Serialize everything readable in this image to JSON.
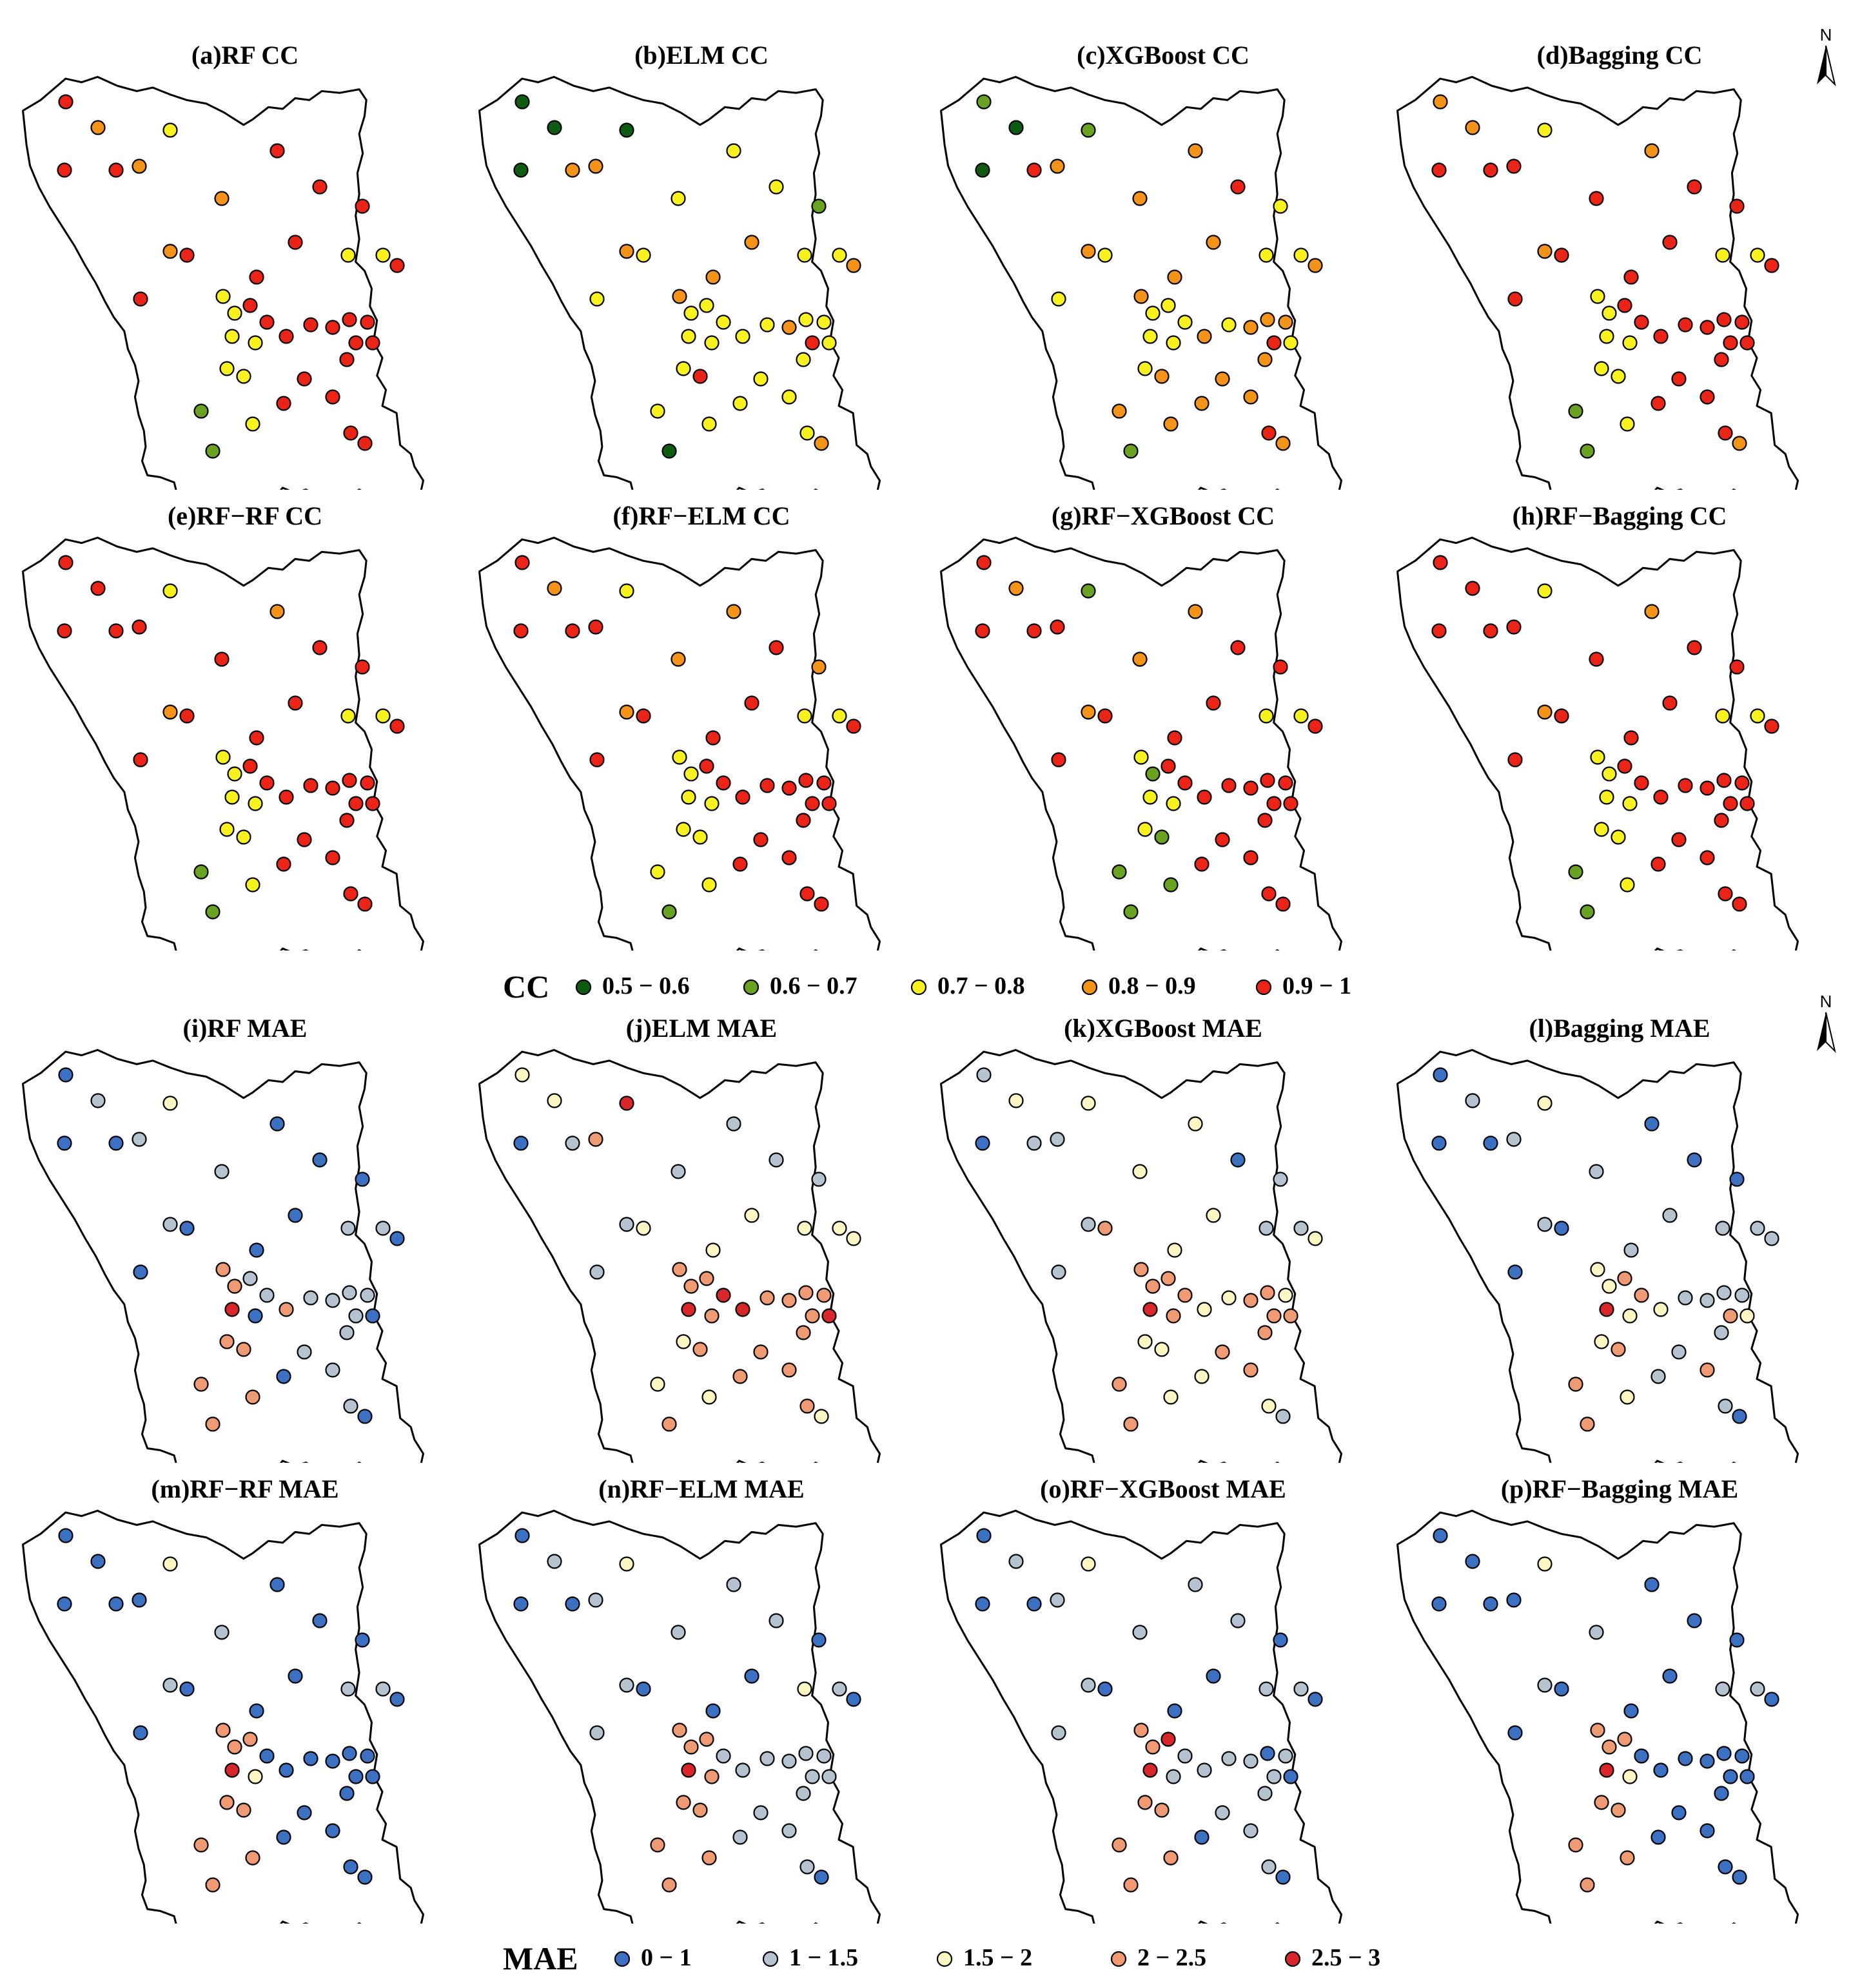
{
  "cc_legend": {
    "title": "CC",
    "classes": [
      {
        "label": "0.5 − 0.6",
        "color": "#0e5b12"
      },
      {
        "label": "0.6 − 0.7",
        "color": "#6aa321"
      },
      {
        "label": "0.7 − 0.8",
        "color": "#f7f11e"
      },
      {
        "label": "0.8 − 0.9",
        "color": "#f39419"
      },
      {
        "label": "0.9 − 1",
        "color": "#eb2417"
      }
    ]
  },
  "mae_legend": {
    "title": "MAE",
    "classes": [
      {
        "label": "0 − 1",
        "color": "#3c70c2"
      },
      {
        "label": "1 − 1.5",
        "color": "#b4c3cf"
      },
      {
        "label": "1.5 − 2",
        "color": "#fbf6c2"
      },
      {
        "label": "2 − 2.5",
        "color": "#f09a73"
      },
      {
        "label": "2.5 − 3",
        "color": "#d8262a"
      }
    ]
  },
  "north_arrow_label": "N",
  "panels": [
    {
      "title": "(a)RF CC",
      "metric": "cc",
      "classes": [
        4,
        3,
        2,
        4,
        4,
        3,
        4,
        3,
        4,
        3,
        4,
        2,
        2,
        4,
        4,
        4,
        4,
        4,
        2,
        2,
        2,
        4,
        4,
        2,
        4,
        4,
        4,
        4,
        4,
        4,
        4,
        4,
        2,
        2,
        1,
        4,
        4,
        2,
        4,
        1,
        4,
        4
      ]
    },
    {
      "title": "(b)ELM CC",
      "metric": "cc",
      "classes": [
        0,
        0,
        0,
        0,
        3,
        3,
        2,
        2,
        2,
        3,
        1,
        2,
        2,
        2,
        2,
        3,
        3,
        3,
        3,
        2,
        2,
        2,
        2,
        2,
        2,
        2,
        3,
        2,
        2,
        2,
        4,
        2,
        2,
        4,
        2,
        2,
        2,
        2,
        2,
        0,
        2,
        3
      ]
    },
    {
      "title": "(c)XGBoost CC",
      "metric": "cc",
      "classes": [
        1,
        0,
        1,
        0,
        4,
        3,
        3,
        3,
        4,
        3,
        2,
        2,
        2,
        2,
        2,
        3,
        3,
        3,
        3,
        2,
        2,
        2,
        2,
        2,
        3,
        2,
        3,
        3,
        3,
        2,
        4,
        3,
        2,
        3,
        3,
        3,
        3,
        3,
        3,
        1,
        4,
        3
      ]
    },
    {
      "title": "(d)Bagging CC",
      "metric": "cc",
      "classes": [
        3,
        3,
        2,
        4,
        4,
        4,
        3,
        4,
        4,
        3,
        4,
        2,
        2,
        4,
        4,
        4,
        4,
        4,
        2,
        2,
        2,
        4,
        4,
        2,
        4,
        4,
        4,
        4,
        4,
        4,
        4,
        4,
        2,
        2,
        1,
        4,
        4,
        2,
        4,
        1,
        4,
        3
      ]
    },
    {
      "title": "(e)RF−RF CC",
      "metric": "cc",
      "classes": [
        4,
        4,
        2,
        4,
        4,
        4,
        3,
        4,
        4,
        3,
        4,
        2,
        2,
        4,
        4,
        4,
        4,
        4,
        2,
        2,
        2,
        4,
        4,
        2,
        4,
        4,
        4,
        4,
        4,
        4,
        4,
        4,
        2,
        2,
        1,
        4,
        4,
        2,
        4,
        1,
        4,
        4
      ]
    },
    {
      "title": "(f)RF−ELM CC",
      "metric": "cc",
      "classes": [
        4,
        3,
        2,
        4,
        4,
        4,
        3,
        3,
        4,
        3,
        3,
        2,
        2,
        4,
        4,
        4,
        4,
        4,
        2,
        2,
        2,
        4,
        4,
        2,
        4,
        4,
        4,
        4,
        4,
        4,
        4,
        4,
        2,
        2,
        2,
        4,
        4,
        2,
        4,
        1,
        4,
        4
      ]
    },
    {
      "title": "(g)RF−XGBoost CC",
      "metric": "cc",
      "classes": [
        4,
        3,
        1,
        4,
        4,
        4,
        3,
        3,
        4,
        3,
        4,
        2,
        2,
        4,
        4,
        4,
        4,
        4,
        2,
        1,
        2,
        4,
        4,
        2,
        4,
        4,
        4,
        4,
        4,
        4,
        4,
        4,
        2,
        1,
        1,
        4,
        4,
        1,
        4,
        1,
        4,
        4
      ]
    },
    {
      "title": "(h)RF−Bagging CC",
      "metric": "cc",
      "classes": [
        4,
        4,
        2,
        4,
        4,
        4,
        3,
        4,
        4,
        3,
        4,
        2,
        2,
        4,
        4,
        4,
        4,
        4,
        2,
        2,
        2,
        4,
        4,
        2,
        4,
        4,
        4,
        4,
        4,
        4,
        4,
        4,
        2,
        2,
        1,
        4,
        4,
        2,
        4,
        1,
        4,
        4
      ]
    },
    {
      "title": "(i)RF MAE",
      "metric": "mae",
      "classes": [
        0,
        1,
        2,
        0,
        0,
        1,
        0,
        1,
        0,
        1,
        0,
        1,
        1,
        0,
        0,
        0,
        0,
        0,
        3,
        3,
        4,
        1,
        1,
        0,
        3,
        1,
        1,
        1,
        1,
        0,
        1,
        1,
        3,
        3,
        3,
        0,
        1,
        3,
        1,
        3,
        1,
        0
      ]
    },
    {
      "title": "(j)ELM MAE",
      "metric": "mae",
      "classes": [
        2,
        2,
        4,
        0,
        1,
        3,
        1,
        1,
        1,
        1,
        1,
        2,
        2,
        1,
        2,
        2,
        2,
        2,
        3,
        3,
        4,
        3,
        4,
        3,
        4,
        3,
        3,
        3,
        3,
        4,
        3,
        3,
        2,
        3,
        2,
        3,
        3,
        2,
        3,
        3,
        3,
        2
      ]
    },
    {
      "title": "(k)XGBoost MAE",
      "metric": "mae",
      "classes": [
        1,
        2,
        2,
        0,
        1,
        1,
        2,
        2,
        0,
        1,
        1,
        1,
        1,
        1,
        3,
        2,
        2,
        2,
        3,
        3,
        4,
        3,
        3,
        3,
        2,
        2,
        3,
        3,
        2,
        3,
        3,
        3,
        2,
        2,
        3,
        2,
        3,
        2,
        3,
        3,
        2,
        1
      ]
    },
    {
      "title": "(l)Bagging MAE",
      "metric": "mae",
      "classes": [
        0,
        1,
        2,
        0,
        0,
        1,
        0,
        1,
        0,
        1,
        0,
        1,
        1,
        0,
        0,
        1,
        1,
        1,
        2,
        2,
        4,
        3,
        3,
        2,
        2,
        1,
        1,
        1,
        1,
        2,
        3,
        1,
        2,
        3,
        3,
        1,
        1,
        2,
        3,
        3,
        1,
        0
      ]
    },
    {
      "title": "(m)RF−RF MAE",
      "metric": "mae",
      "classes": [
        0,
        0,
        2,
        0,
        0,
        0,
        0,
        1,
        0,
        1,
        0,
        1,
        1,
        0,
        0,
        0,
        0,
        0,
        3,
        3,
        4,
        3,
        0,
        2,
        0,
        0,
        0,
        0,
        0,
        0,
        0,
        0,
        3,
        3,
        3,
        0,
        0,
        3,
        0,
        3,
        0,
        0
      ]
    },
    {
      "title": "(n)RF−ELM MAE",
      "metric": "mae",
      "classes": [
        0,
        1,
        2,
        0,
        0,
        1,
        1,
        1,
        1,
        1,
        0,
        2,
        1,
        1,
        0,
        0,
        0,
        0,
        3,
        3,
        4,
        3,
        1,
        3,
        1,
        1,
        1,
        1,
        1,
        1,
        1,
        1,
        3,
        3,
        3,
        1,
        1,
        3,
        1,
        3,
        1,
        0
      ]
    },
    {
      "title": "(o)RF−XGBoost MAE",
      "metric": "mae",
      "classes": [
        0,
        1,
        2,
        0,
        0,
        1,
        1,
        1,
        1,
        1,
        0,
        1,
        1,
        1,
        0,
        0,
        0,
        0,
        3,
        3,
        4,
        4,
        1,
        1,
        1,
        1,
        1,
        0,
        1,
        0,
        1,
        1,
        3,
        3,
        3,
        0,
        1,
        3,
        1,
        3,
        1,
        0
      ]
    },
    {
      "title": "(p)RF−Bagging MAE",
      "metric": "mae",
      "classes": [
        0,
        0,
        2,
        0,
        0,
        0,
        0,
        1,
        0,
        1,
        0,
        1,
        1,
        0,
        0,
        0,
        0,
        0,
        3,
        3,
        4,
        3,
        0,
        2,
        0,
        0,
        0,
        0,
        0,
        0,
        0,
        0,
        3,
        3,
        3,
        0,
        0,
        3,
        0,
        3,
        0,
        0
      ]
    }
  ]
}
